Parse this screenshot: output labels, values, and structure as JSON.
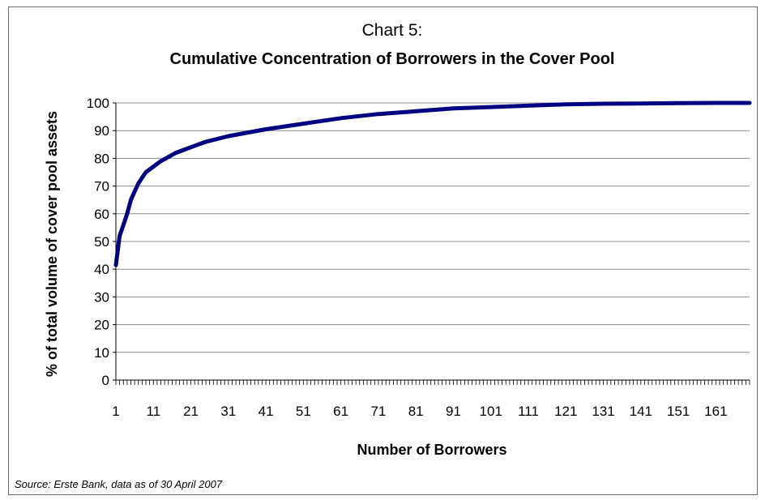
{
  "chart_data": {
    "type": "line",
    "title_line1": "Chart 5:",
    "title": "Cumulative Concentration of Borrowers in the Cover Pool",
    "xlabel": "Number of Borrowers",
    "ylabel": "% of total volume of cover pool assets",
    "ylim": [
      0,
      100
    ],
    "yticks": [
      "0",
      "10",
      "20",
      "30",
      "40",
      "50",
      "60",
      "70",
      "80",
      "90",
      "100"
    ],
    "xticks": [
      "1",
      "11",
      "21",
      "31",
      "41",
      "51",
      "61",
      "71",
      "81",
      "91",
      "101",
      "111",
      "121",
      "131",
      "141",
      "151",
      "161"
    ],
    "xlim": [
      1,
      170
    ],
    "grid": true,
    "legend": "none",
    "series_color": "#000080",
    "x": [
      1,
      2,
      3,
      4,
      5,
      6,
      7,
      8,
      9,
      10,
      11,
      13,
      15,
      17,
      19,
      21,
      25,
      31,
      41,
      51,
      61,
      71,
      81,
      91,
      101,
      111,
      121,
      131,
      141,
      151,
      161,
      170
    ],
    "values": [
      41.5,
      52,
      56,
      60,
      65,
      68,
      71,
      73,
      75,
      76,
      77,
      79,
      80.5,
      82,
      83,
      84,
      86,
      88,
      90.5,
      92.5,
      94.5,
      96,
      97,
      98,
      98.5,
      99,
      99.5,
      99.7,
      99.8,
      99.9,
      100,
      100
    ]
  },
  "source": "Source: Erste Bank, data as of 30 April 2007"
}
